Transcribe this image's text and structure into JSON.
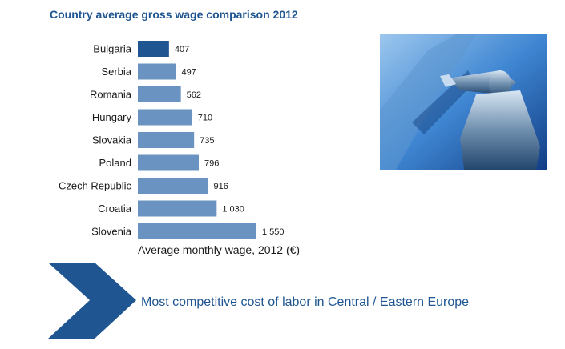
{
  "header": {
    "title": "Country average gross wage comparison 2012"
  },
  "colors": {
    "highlight_bar": "#1f5591",
    "bar": "#6b93c2",
    "accent_text": "#1f5591"
  },
  "chart_data": {
    "type": "bar",
    "orientation": "horizontal",
    "categories": [
      "Bulgaria",
      "Serbia",
      "Romania",
      "Hungary",
      "Slovakia",
      "Poland",
      "Czech Republic",
      "Croatia",
      "Slovenia"
    ],
    "values": [
      407,
      497,
      562,
      710,
      735,
      796,
      916,
      1030,
      1550
    ],
    "value_labels": [
      "407",
      "497",
      "562",
      "710",
      "735",
      "796",
      "916",
      "1 030",
      "1 550"
    ],
    "highlight_index": 0,
    "xlabel": "Average monthly wage, 2012  (€)",
    "xlim": [
      0,
      1550
    ],
    "grid": false
  },
  "photo": {
    "icon": "statue-photo"
  },
  "footer": {
    "chevron_icon": "chevron-right-icon",
    "tagline": "Most competitive cost of labor in Central / Eastern Europe"
  }
}
